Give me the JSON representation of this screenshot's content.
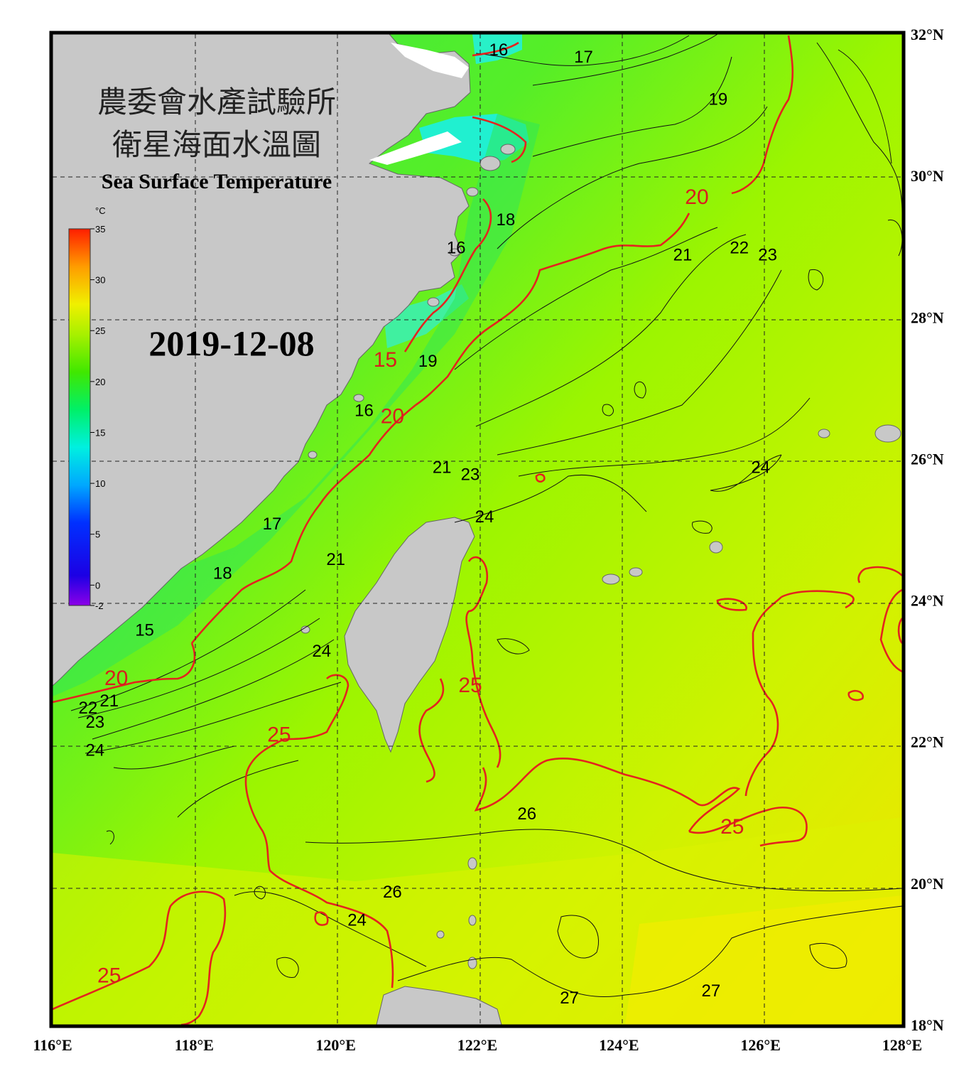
{
  "title_zh_line1": "農委會水產試驗所",
  "title_zh_line2": "衛星海面水溫圖",
  "title_en": "Sea Surface Temperature",
  "date": "2019-12-08",
  "colorbar": {
    "unit": "°C",
    "ticks": [
      "35",
      "30",
      "25",
      "20",
      "15",
      "10",
      "5",
      "0",
      "-2"
    ]
  },
  "axes": {
    "lon_labels": [
      "116°E",
      "118°E",
      "120°E",
      "122°E",
      "124°E",
      "126°E",
      "128°E"
    ],
    "lat_labels": [
      "32°N",
      "30°N",
      "28°N",
      "26°N",
      "24°N",
      "22°N",
      "20°N",
      "18°N"
    ]
  },
  "isotherms": {
    "black": [
      {
        "text": "16",
        "lon": 122.3,
        "lat": 31.7
      },
      {
        "text": "17",
        "lon": 123.5,
        "lat": 31.6
      },
      {
        "text": "19",
        "lon": 125.4,
        "lat": 31.0
      },
      {
        "text": "18",
        "lon": 122.4,
        "lat": 29.3
      },
      {
        "text": "16",
        "lon": 121.7,
        "lat": 28.9
      },
      {
        "text": "21",
        "lon": 124.9,
        "lat": 28.8
      },
      {
        "text": "22",
        "lon": 125.7,
        "lat": 28.9
      },
      {
        "text": "23",
        "lon": 126.1,
        "lat": 28.8
      },
      {
        "text": "19",
        "lon": 121.3,
        "lat": 27.3
      },
      {
        "text": "16",
        "lon": 120.4,
        "lat": 26.6
      },
      {
        "text": "21",
        "lon": 121.5,
        "lat": 25.8
      },
      {
        "text": "23",
        "lon": 121.9,
        "lat": 25.7
      },
      {
        "text": "24",
        "lon": 122.1,
        "lat": 25.1
      },
      {
        "text": "24",
        "lon": 126.0,
        "lat": 25.8
      },
      {
        "text": "17",
        "lon": 119.1,
        "lat": 25.0
      },
      {
        "text": "21",
        "lon": 120.0,
        "lat": 24.5
      },
      {
        "text": "18",
        "lon": 118.4,
        "lat": 24.3
      },
      {
        "text": "15",
        "lon": 117.3,
        "lat": 23.5
      },
      {
        "text": "24",
        "lon": 119.8,
        "lat": 23.2
      },
      {
        "text": "21",
        "lon": 116.8,
        "lat": 22.5
      },
      {
        "text": "22",
        "lon": 116.5,
        "lat": 22.4
      },
      {
        "text": "23",
        "lon": 116.6,
        "lat": 22.2
      },
      {
        "text": "24",
        "lon": 116.6,
        "lat": 21.8
      },
      {
        "text": "26",
        "lon": 122.7,
        "lat": 20.9
      },
      {
        "text": "26",
        "lon": 120.8,
        "lat": 19.8
      },
      {
        "text": "24",
        "lon": 120.3,
        "lat": 19.4
      },
      {
        "text": "27",
        "lon": 123.3,
        "lat": 18.3
      },
      {
        "text": "27",
        "lon": 125.3,
        "lat": 18.4
      }
    ],
    "red": [
      {
        "text": "20",
        "lon": 125.1,
        "lat": 29.6
      },
      {
        "text": "15",
        "lon": 120.7,
        "lat": 27.3
      },
      {
        "text": "20",
        "lon": 120.8,
        "lat": 26.5
      },
      {
        "text": "20",
        "lon": 116.9,
        "lat": 22.8
      },
      {
        "text": "25",
        "lon": 119.2,
        "lat": 22.0
      },
      {
        "text": "25",
        "lon": 121.9,
        "lat": 22.7
      },
      {
        "text": "25",
        "lon": 125.6,
        "lat": 20.7
      },
      {
        "text": "25",
        "lon": 116.8,
        "lat": 18.6
      }
    ]
  }
}
